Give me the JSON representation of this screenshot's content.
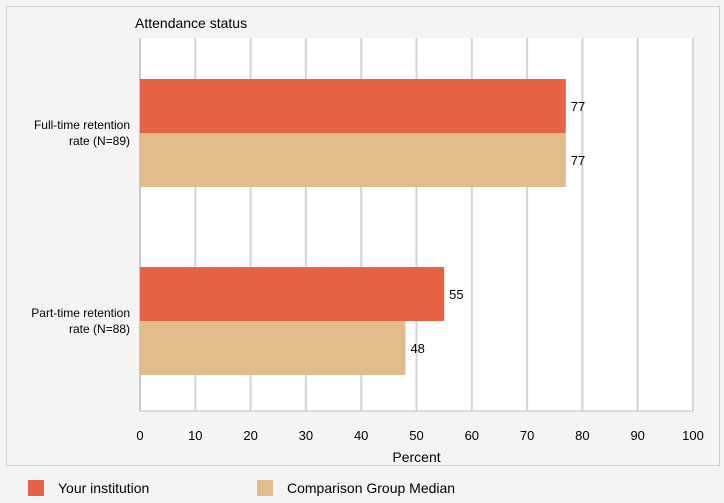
{
  "chart_data": {
    "type": "bar",
    "orientation": "horizontal",
    "title": "Attendance status",
    "xlabel": "Percent",
    "ylabel": "",
    "xlim": [
      0,
      100
    ],
    "xticks": [
      0,
      10,
      20,
      30,
      40,
      50,
      60,
      70,
      80,
      90,
      100
    ],
    "grid": true,
    "legend_position": "bottom",
    "categories": [
      [
        "Full-time retention",
        "rate (N=89)"
      ],
      [
        "Part-time retention",
        "rate (N=88)"
      ]
    ],
    "series": [
      {
        "name": "Your institution",
        "color": "#e56343",
        "values": [
          77,
          55
        ]
      },
      {
        "name": "Comparison Group Median",
        "color": "#e1bc8a",
        "values": [
          77,
          48
        ]
      }
    ]
  }
}
